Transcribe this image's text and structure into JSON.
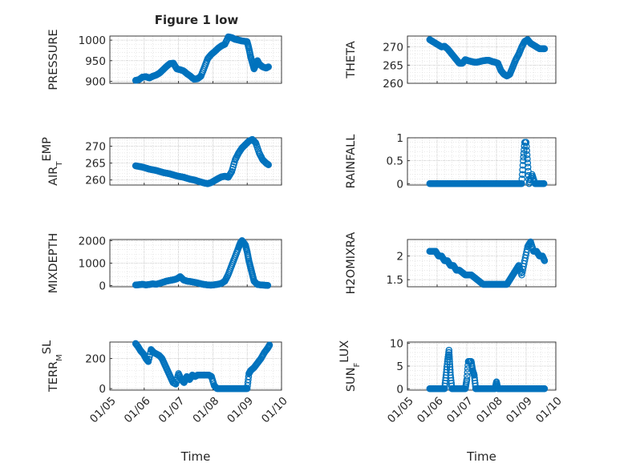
{
  "figure": {
    "title": "Figure 1 low",
    "marker_color": "#0072BD"
  },
  "chart_data": [
    {
      "type": "scatter",
      "id": "pressure",
      "title": "Figure 1 low",
      "ylabel": "PRESSURE",
      "ylabel_sub": null,
      "xlabel": "",
      "xlim": [
        5,
        10
      ],
      "ylim": [
        895,
        1010
      ],
      "yticks": [
        900,
        950,
        1000
      ],
      "grid": true,
      "minor_grid": true,
      "x": [
        5.75,
        5.85,
        5.95,
        6.05,
        6.15,
        6.25,
        6.35,
        6.45,
        6.55,
        6.65,
        6.75,
        6.85,
        6.95,
        7.05,
        7.15,
        7.25,
        7.35,
        7.45,
        7.55,
        7.65,
        7.75,
        7.85,
        7.95,
        8.05,
        8.15,
        8.25,
        8.35,
        8.45,
        8.55,
        8.6,
        8.65,
        8.75,
        8.85,
        8.95,
        9.0,
        9.05,
        9.1,
        9.15,
        9.2,
        9.25,
        9.3,
        9.35,
        9.45,
        9.55,
        9.62
      ],
      "y": [
        902,
        904,
        910,
        911,
        908,
        912,
        915,
        920,
        928,
        936,
        943,
        944,
        930,
        928,
        925,
        918,
        912,
        905,
        906,
        912,
        933,
        955,
        965,
        972,
        980,
        986,
        990,
        1008,
        1006,
        1004,
        1002,
        1000,
        998,
        997,
        996,
        980,
        960,
        945,
        930,
        940,
        950,
        942,
        935,
        932,
        935
      ]
    },
    {
      "type": "scatter",
      "id": "theta",
      "title": "",
      "ylabel": "THETA",
      "ylabel_sub": null,
      "xlabel": "",
      "xlim": [
        5,
        10
      ],
      "ylim": [
        260,
        273
      ],
      "yticks": [
        260,
        265,
        270
      ],
      "grid": true,
      "minor_grid": true,
      "x": [
        5.75,
        5.85,
        5.95,
        6.05,
        6.15,
        6.25,
        6.35,
        6.45,
        6.55,
        6.65,
        6.75,
        6.85,
        6.95,
        7.05,
        7.15,
        7.25,
        7.35,
        7.45,
        7.55,
        7.65,
        7.75,
        7.85,
        7.95,
        8.05,
        8.15,
        8.25,
        8.35,
        8.45,
        8.55,
        8.65,
        8.75,
        8.85,
        8.95,
        9.05,
        9.15,
        9.25,
        9.35,
        9.45,
        9.55,
        9.62
      ],
      "y": [
        272,
        271.5,
        271,
        270.5,
        270,
        270.2,
        269.5,
        268.5,
        267.5,
        266.5,
        265.5,
        265.5,
        266.5,
        266.2,
        266,
        265.8,
        265.8,
        266,
        266.2,
        266.3,
        266.3,
        266,
        265.8,
        265.5,
        263.5,
        262.5,
        262,
        262.5,
        264.5,
        266.5,
        268,
        270,
        271.5,
        272,
        271,
        270.5,
        270,
        269.5,
        269.5,
        269.5
      ]
    },
    {
      "type": "scatter",
      "id": "air_temp",
      "title": "",
      "ylabel": "AIR",
      "ylabel_sub": "T",
      "ylabel_tail": "EMP",
      "xlabel": "",
      "xlim": [
        5,
        10
      ],
      "ylim": [
        258.5,
        272.5
      ],
      "yticks": [
        260,
        265,
        270
      ],
      "grid": true,
      "minor_grid": true,
      "x": [
        5.75,
        5.85,
        5.95,
        6.05,
        6.15,
        6.25,
        6.35,
        6.45,
        6.55,
        6.65,
        6.75,
        6.85,
        6.95,
        7.05,
        7.15,
        7.25,
        7.35,
        7.45,
        7.55,
        7.65,
        7.75,
        7.85,
        7.95,
        8.05,
        8.15,
        8.25,
        8.35,
        8.45,
        8.55,
        8.65,
        8.75,
        8.85,
        8.95,
        9.05,
        9.15,
        9.25,
        9.35,
        9.45,
        9.55,
        9.62
      ],
      "y": [
        264.2,
        264,
        263.8,
        263.5,
        263.2,
        263,
        262.8,
        262.5,
        262.2,
        262,
        261.8,
        261.5,
        261.2,
        261,
        260.8,
        260.5,
        260.2,
        260,
        259.7,
        259.4,
        259.1,
        258.9,
        259.2,
        259.8,
        260.4,
        260.9,
        261.1,
        260.8,
        262.5,
        266,
        268,
        269.5,
        270.5,
        271.5,
        272,
        271,
        268,
        266,
        265,
        264.5
      ]
    },
    {
      "type": "scatter",
      "id": "rainfall",
      "title": "",
      "ylabel": "RAINFALL",
      "ylabel_sub": null,
      "xlabel": "",
      "xlim": [
        5,
        10
      ],
      "ylim": [
        -0.03,
        1.0
      ],
      "yticks": [
        0,
        0.5,
        1
      ],
      "grid": true,
      "minor_grid": true,
      "x": [
        5.75,
        5.85,
        5.95,
        6.05,
        6.15,
        6.25,
        6.35,
        6.45,
        6.55,
        6.65,
        6.75,
        6.85,
        6.95,
        7.05,
        7.15,
        7.25,
        7.35,
        7.45,
        7.55,
        7.65,
        7.75,
        7.85,
        7.95,
        8.05,
        8.15,
        8.25,
        8.35,
        8.45,
        8.55,
        8.65,
        8.75,
        8.85,
        8.9,
        8.95,
        9.0,
        9.05,
        9.1,
        9.2,
        9.3,
        9.4,
        9.5,
        9.6
      ],
      "y": [
        0,
        0,
        0,
        0,
        0,
        0,
        0,
        0,
        0,
        0,
        0,
        0,
        0,
        0,
        0,
        0,
        0,
        0,
        0,
        0,
        0,
        0,
        0,
        0,
        0,
        0,
        0,
        0,
        0,
        0,
        0,
        0,
        0.5,
        0.9,
        0.9,
        0.45,
        0,
        0.2,
        0,
        0,
        0,
        0
      ]
    },
    {
      "type": "scatter",
      "id": "mixdepth",
      "title": "",
      "ylabel": "MIXDEPTH",
      "ylabel_sub": null,
      "xlabel": "",
      "xlim": [
        5,
        10
      ],
      "ylim": [
        -50,
        2050
      ],
      "yticks": [
        0,
        1000,
        2000
      ],
      "grid": true,
      "minor_grid": true,
      "x": [
        5.75,
        5.85,
        5.95,
        6.05,
        6.15,
        6.25,
        6.35,
        6.45,
        6.55,
        6.65,
        6.75,
        6.85,
        6.95,
        7.05,
        7.15,
        7.25,
        7.35,
        7.45,
        7.55,
        7.65,
        7.75,
        7.85,
        7.95,
        8.05,
        8.15,
        8.25,
        8.35,
        8.45,
        8.55,
        8.65,
        8.75,
        8.8,
        8.85,
        8.9,
        8.95,
        9.0,
        9.05,
        9.1,
        9.15,
        9.2,
        9.3,
        9.4,
        9.5,
        9.6
      ],
      "y": [
        30,
        40,
        60,
        30,
        50,
        80,
        60,
        100,
        150,
        200,
        230,
        260,
        300,
        400,
        250,
        200,
        180,
        150,
        120,
        80,
        50,
        30,
        20,
        40,
        60,
        100,
        200,
        500,
        900,
        1300,
        1700,
        1900,
        2000,
        1900,
        1800,
        1500,
        1100,
        800,
        500,
        200,
        50,
        30,
        20,
        10
      ]
    },
    {
      "type": "scatter",
      "id": "h2omixra",
      "title": "",
      "ylabel": "H2OMIXRA",
      "ylabel_sub": null,
      "xlabel": "",
      "xlim": [
        5,
        10
      ],
      "ylim": [
        1.35,
        2.35
      ],
      "yticks": [
        1.5,
        2
      ],
      "grid": true,
      "minor_grid": true,
      "x": [
        5.75,
        5.85,
        5.95,
        6.05,
        6.15,
        6.25,
        6.35,
        6.45,
        6.55,
        6.65,
        6.75,
        6.85,
        6.95,
        7.05,
        7.15,
        7.25,
        7.35,
        7.45,
        7.55,
        7.65,
        7.75,
        7.85,
        7.95,
        8.05,
        8.15,
        8.25,
        8.35,
        8.45,
        8.55,
        8.65,
        8.75,
        8.85,
        8.95,
        9.05,
        9.15,
        9.25,
        9.35,
        9.45,
        9.55,
        9.62
      ],
      "y": [
        2.1,
        2.1,
        2.1,
        2.0,
        2.0,
        1.9,
        1.9,
        1.8,
        1.8,
        1.7,
        1.7,
        1.65,
        1.6,
        1.6,
        1.6,
        1.55,
        1.5,
        1.45,
        1.4,
        1.4,
        1.4,
        1.4,
        1.4,
        1.4,
        1.4,
        1.4,
        1.4,
        1.5,
        1.6,
        1.7,
        1.8,
        1.6,
        1.9,
        2.2,
        2.3,
        2.1,
        2.1,
        2.0,
        2.0,
        1.9
      ]
    },
    {
      "type": "scatter",
      "id": "terr_msl",
      "title": "",
      "ylabel": "TERR",
      "ylabel_sub": "M",
      "ylabel_tail": "SL",
      "xlabel": "Time",
      "xlim": [
        5,
        10
      ],
      "ylim": [
        -10,
        310
      ],
      "yticks": [
        0,
        200
      ],
      "xticks": [
        5,
        6,
        7,
        8,
        9,
        10
      ],
      "xticklabels": [
        "01/05",
        "01/06",
        "01/07",
        "01/08",
        "01/09",
        "01/10"
      ],
      "grid": true,
      "minor_grid": true,
      "x": [
        5.75,
        5.82,
        5.9,
        5.98,
        6.05,
        6.12,
        6.2,
        6.28,
        6.36,
        6.44,
        6.52,
        6.6,
        6.68,
        6.76,
        6.84,
        6.92,
        7.0,
        7.08,
        7.16,
        7.24,
        7.32,
        7.4,
        7.48,
        7.56,
        7.64,
        7.72,
        7.8,
        7.88,
        7.96,
        8.04,
        8.12,
        8.2,
        8.28,
        8.36,
        8.44,
        8.52,
        8.6,
        8.68,
        8.76,
        8.84,
        8.92,
        9.0,
        9.05,
        9.1,
        9.2,
        9.3,
        9.4,
        9.5,
        9.6,
        9.65
      ],
      "y": [
        300,
        280,
        250,
        230,
        200,
        180,
        260,
        240,
        230,
        220,
        200,
        160,
        120,
        80,
        40,
        30,
        100,
        60,
        40,
        80,
        60,
        90,
        80,
        90,
        90,
        90,
        90,
        90,
        80,
        20,
        0,
        0,
        0,
        0,
        0,
        0,
        0,
        0,
        0,
        0,
        0,
        0,
        100,
        120,
        140,
        170,
        200,
        240,
        270,
        290
      ]
    },
    {
      "type": "scatter",
      "id": "sun_flux",
      "title": "",
      "ylabel": "SUN",
      "ylabel_sub": "F",
      "ylabel_tail": "LUX",
      "xlabel": "Time",
      "xlim": [
        5,
        10
      ],
      "ylim": [
        -0.3,
        10.3
      ],
      "yticks": [
        0,
        5,
        10
      ],
      "xticks": [
        5,
        6,
        7,
        8,
        9,
        10
      ],
      "xticklabels": [
        "01/05",
        "01/06",
        "01/07",
        "01/08",
        "01/09",
        "01/10"
      ],
      "grid": true,
      "minor_grid": true,
      "x": [
        5.75,
        5.85,
        5.95,
        6.05,
        6.15,
        6.25,
        6.3,
        6.35,
        6.4,
        6.42,
        6.45,
        6.5,
        6.55,
        6.65,
        6.75,
        6.85,
        6.95,
        7.0,
        7.05,
        7.1,
        7.15,
        7.2,
        7.25,
        7.3,
        7.35,
        7.45,
        7.55,
        7.65,
        7.75,
        7.85,
        7.95,
        8.0,
        8.05,
        8.15,
        8.25,
        8.35,
        8.45,
        8.55,
        8.65,
        8.75,
        8.85,
        8.95,
        9.05,
        9.15,
        9.25,
        9.35,
        9.45,
        9.55,
        9.62
      ],
      "y": [
        0,
        0,
        0,
        0,
        0,
        0,
        3,
        6,
        8.5,
        6,
        3,
        0,
        0,
        0,
        0,
        0,
        0,
        2,
        6,
        6,
        6,
        4,
        3,
        0,
        0,
        0,
        0,
        0,
        0,
        0,
        0,
        1.5,
        0,
        0,
        0,
        0,
        0,
        0,
        0,
        0,
        0,
        0,
        0,
        0,
        0,
        0,
        0,
        0,
        0
      ]
    }
  ]
}
